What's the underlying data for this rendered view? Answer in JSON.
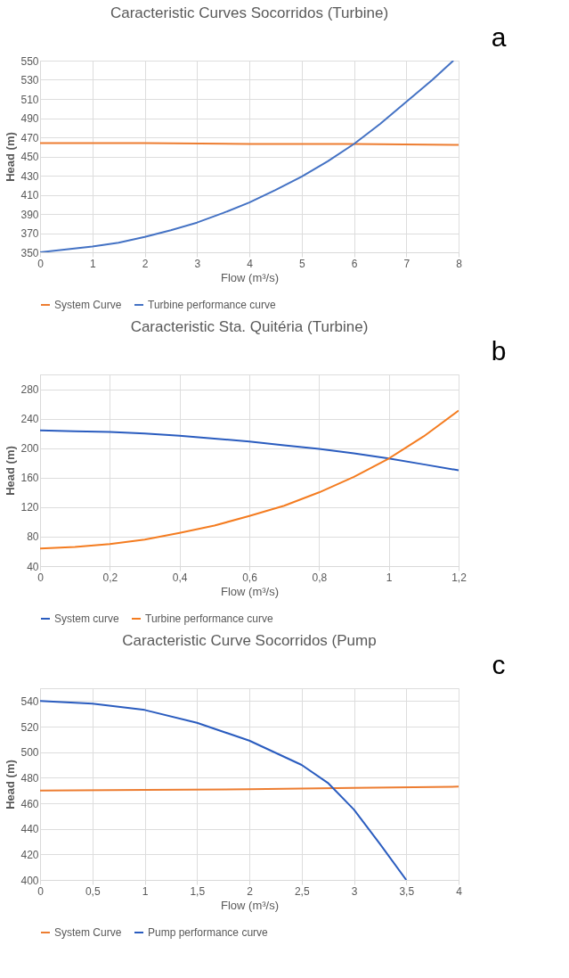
{
  "chart_data": [
    {
      "type": "line",
      "title": "Caracteristic Curves Socorridos (Turbine)",
      "xlabel": "Flow (m³/s)",
      "ylabel": "Head (m)",
      "annotations": [
        "a"
      ],
      "grid": true,
      "legend": "bottom",
      "xlim": [
        0,
        8
      ],
      "xticks": [
        0,
        1,
        2,
        3,
        4,
        5,
        6,
        7,
        8
      ],
      "ylim": [
        350,
        550
      ],
      "yticks": [
        350,
        370,
        390,
        410,
        430,
        450,
        470,
        490,
        510,
        530,
        550
      ],
      "series": [
        {
          "name": "System Curve",
          "color": "#ed7d31",
          "x": [
            0,
            2,
            4,
            6,
            8
          ],
          "values": [
            464,
            464,
            463,
            463,
            462
          ]
        },
        {
          "name": "Turbine performance curve",
          "color": "#4472c4",
          "x": [
            0,
            0.5,
            1,
            1.5,
            2,
            2.5,
            3,
            3.5,
            4,
            4.5,
            5,
            5.5,
            6,
            6.5,
            7,
            7.5,
            7.9
          ],
          "values": [
            350,
            353,
            356,
            360,
            366,
            373,
            381,
            391,
            402,
            415,
            429,
            445,
            463,
            484,
            507,
            530,
            550
          ]
        }
      ]
    },
    {
      "type": "line",
      "title": "Caracteristic Sta. Quitéria (Turbine)",
      "xlabel": "Flow (m³/s)",
      "ylabel": "Head (m)",
      "annotations": [
        "b"
      ],
      "grid": true,
      "legend": "bottom",
      "xlim": [
        0,
        1.2
      ],
      "xticks": [
        0,
        {
          "value": 0.2,
          "label": "0,2"
        },
        {
          "value": 0.4,
          "label": "0,4"
        },
        {
          "value": 0.6,
          "label": "0,6"
        },
        {
          "value": 0.8,
          "label": "0,8"
        },
        1,
        {
          "value": 1.2,
          "label": "1,2"
        }
      ],
      "ylim": [
        40,
        300
      ],
      "yticks": [
        40,
        80,
        120,
        160,
        200,
        240,
        280
      ],
      "series": [
        {
          "name": "System curve",
          "color": "#2a5cbf",
          "x": [
            0,
            0.1,
            0.2,
            0.3,
            0.4,
            0.5,
            0.6,
            0.7,
            0.8,
            0.9,
            1.0,
            1.1,
            1.2
          ],
          "values": [
            224,
            223,
            222,
            220,
            217,
            213,
            209,
            204,
            199,
            193,
            186,
            178,
            170
          ]
        },
        {
          "name": "Turbine performance curve",
          "color": "#f47c20",
          "x": [
            0,
            0.1,
            0.2,
            0.3,
            0.4,
            0.5,
            0.6,
            0.7,
            0.8,
            0.9,
            1.0,
            1.1,
            1.2
          ],
          "values": [
            64,
            66,
            70,
            76,
            85,
            95,
            108,
            122,
            140,
            161,
            186,
            216,
            251
          ]
        }
      ]
    },
    {
      "type": "line",
      "title": "Caracteristic Curve Socorridos (Pump",
      "xlabel": "Flow (m³/s)",
      "ylabel": "Head (m)",
      "annotations": [
        "c"
      ],
      "grid": true,
      "legend": "bottom",
      "xlim": [
        0,
        4
      ],
      "xticks": [
        0,
        {
          "value": 0.5,
          "label": "0,5"
        },
        1,
        {
          "value": 1.5,
          "label": "1,5"
        },
        2,
        {
          "value": 2.5,
          "label": "2,5"
        },
        3,
        {
          "value": 3.5,
          "label": "3,5"
        },
        4
      ],
      "ylim": [
        400,
        550
      ],
      "yticks": [
        400,
        420,
        440,
        460,
        480,
        500,
        520,
        540
      ],
      "series": [
        {
          "name": "System Curve",
          "color": "#ed7d31",
          "x": [
            0,
            1,
            2,
            3,
            4
          ],
          "values": [
            470,
            470.5,
            471,
            472,
            473
          ]
        },
        {
          "name": "Pump performance curve",
          "color": "#2a5cbf",
          "x": [
            0,
            0.5,
            1,
            1.5,
            2,
            2.5,
            2.75,
            3,
            3.25,
            3.5
          ],
          "values": [
            540,
            538,
            533,
            523,
            509,
            490,
            476,
            455,
            428,
            400
          ]
        }
      ]
    }
  ]
}
